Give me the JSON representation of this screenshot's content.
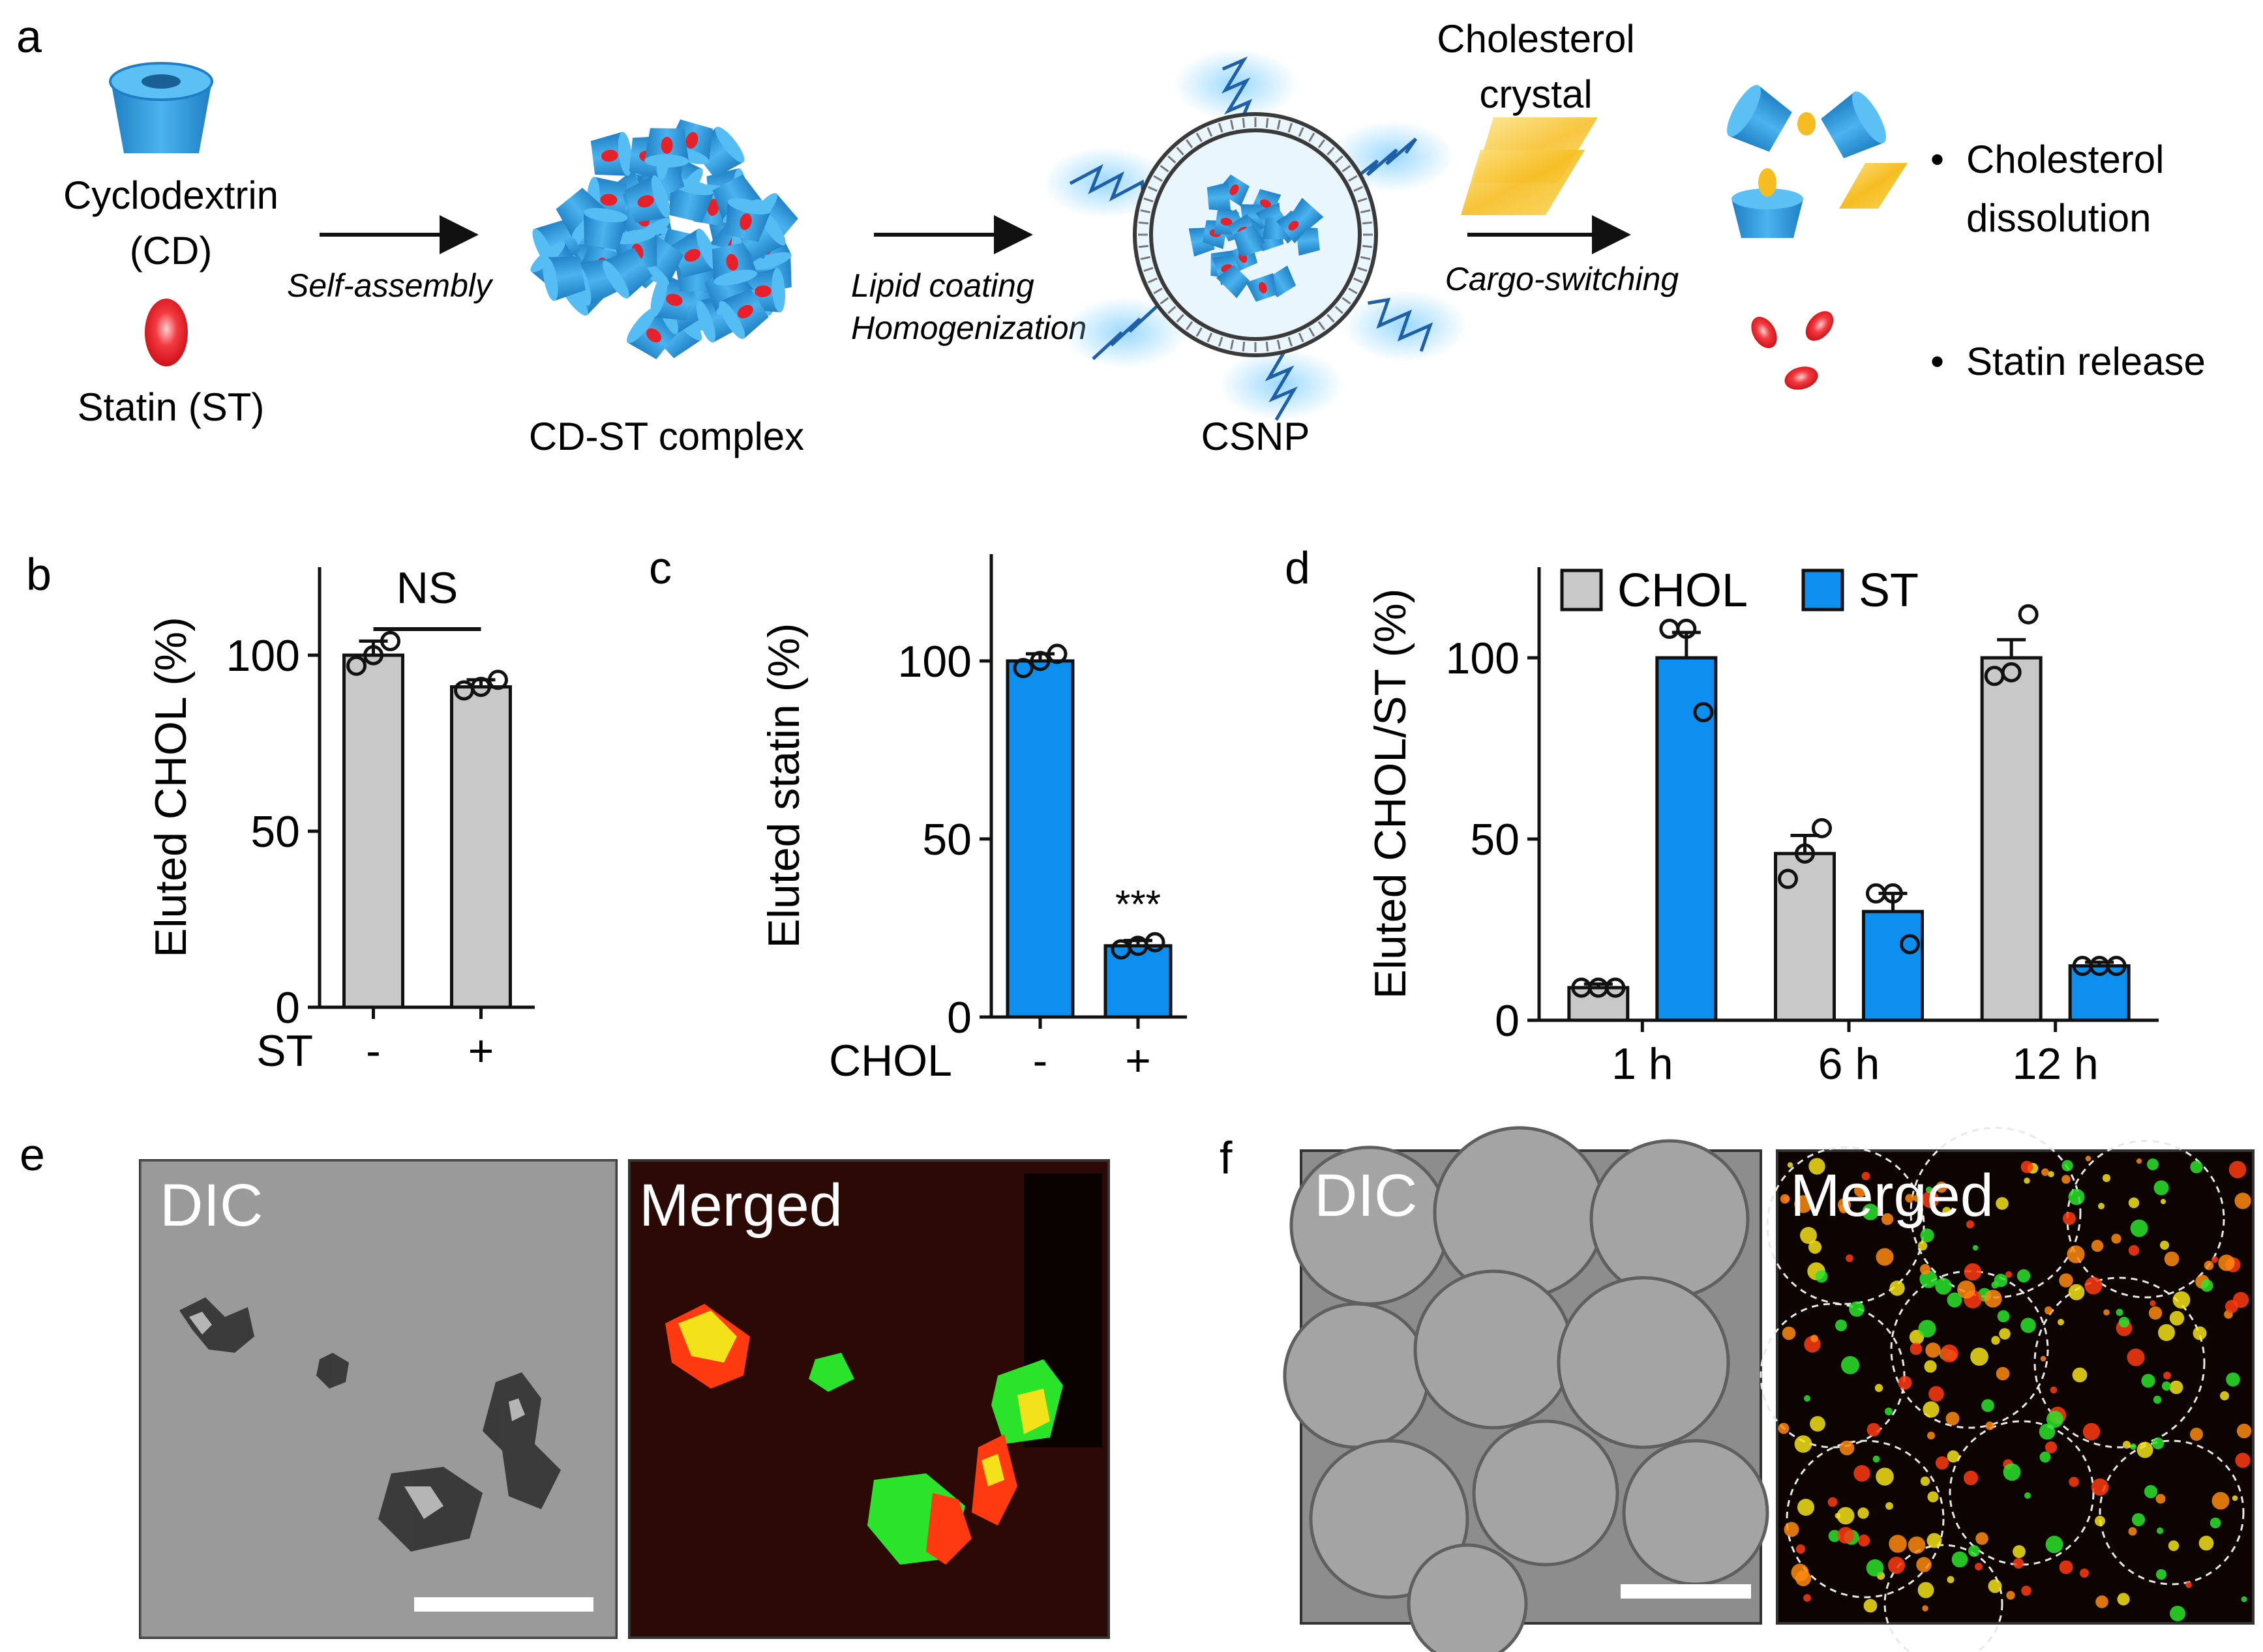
{
  "panel_labels": {
    "a": "a",
    "b": "b",
    "c": "c",
    "d": "d",
    "e": "e",
    "f": "f"
  },
  "schematic": {
    "cd_label_1": "Cyclodextrin",
    "cd_label_2": "(CD)",
    "st_label": "Statin (ST)",
    "step1_label": "Self-assembly",
    "complex_label": "CD-ST complex",
    "step2_label_1": "Lipid coating",
    "step2_label_2": "Homogenization",
    "csnp_label": "CSNP",
    "crystal_label_1": "Cholesterol",
    "crystal_label_2": "crystal",
    "step3_label": "Cargo-switching",
    "outcome_1a": "Cholesterol",
    "outcome_1b": "dissolution",
    "outcome_2": "Statin release",
    "bullet": "•"
  },
  "colors": {
    "cd_blue": "#2f9be0",
    "statin_red": "#e8202a",
    "chol_grey": "#c8c8c8",
    "st_blue": "#0d8ff0",
    "crystal_yellow": "#f5c02a"
  },
  "chart_data": [
    {
      "type": "bar",
      "panel": "b",
      "ylabel": "Eluted CHOL (%)",
      "xlabel": "ST",
      "categories": [
        "-",
        "+"
      ],
      "values": [
        100,
        91
      ],
      "errors": [
        4,
        2
      ],
      "points": [
        [
          97,
          100,
          104
        ],
        [
          90,
          91,
          93
        ]
      ],
      "ylim": [
        0,
        125
      ],
      "yticks": [
        "0",
        "50",
        "100"
      ],
      "annotation": "NS",
      "color": "#c8c8c8"
    },
    {
      "type": "bar",
      "panel": "c",
      "ylabel": "Eluted statin (%)",
      "xlabel": "CHOL",
      "categories": [
        "-",
        "+"
      ],
      "values": [
        100,
        20
      ],
      "errors": [
        2,
        1.5
      ],
      "points": [
        [
          98,
          100,
          102
        ],
        [
          19,
          20,
          21
        ]
      ],
      "ylim": [
        0,
        130
      ],
      "yticks": [
        "0",
        "50",
        "100"
      ],
      "annotation": "***",
      "color": "#0d8ff0"
    },
    {
      "type": "bar",
      "panel": "d",
      "ylabel": "Eluted CHOL/ST (%)",
      "categories": [
        "1 h",
        "6 h",
        "12 h"
      ],
      "series": [
        {
          "name": "CHOL",
          "values": [
            9,
            46,
            100
          ],
          "errors": [
            1,
            5,
            5
          ],
          "points": [
            [
              9,
              9,
              9
            ],
            [
              39,
              46,
              53
            ],
            [
              95,
              96,
              112
            ]
          ],
          "color": "#c8c8c8"
        },
        {
          "name": "ST",
          "values": [
            100,
            30,
            15
          ],
          "errors": [
            7,
            5,
            1
          ],
          "points": [
            [
              108,
              108,
              85
            ],
            [
              35,
              35,
              21
            ],
            [
              15,
              15,
              15
            ]
          ],
          "color": "#0d8ff0"
        }
      ],
      "ylim": [
        0,
        125
      ],
      "yticks": [
        "0",
        "50",
        "100"
      ],
      "legend": "top"
    }
  ],
  "images": {
    "e_left_label": "DIC",
    "e_right_label": "Merged",
    "f_left_label": "DIC",
    "f_right_label": "Merged"
  }
}
